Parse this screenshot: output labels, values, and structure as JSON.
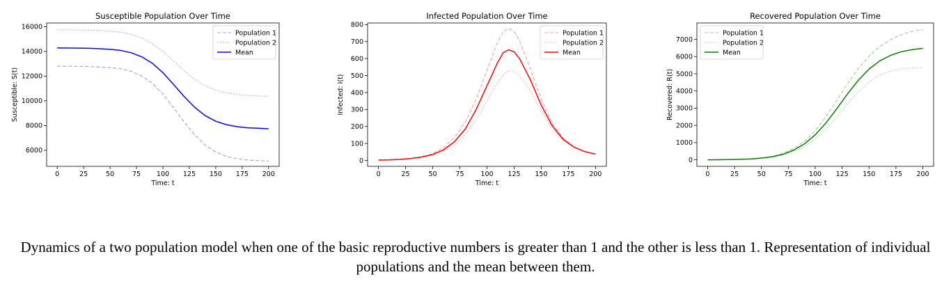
{
  "figure": {
    "caption": "Dynamics of a two population model when one of the basic reproductive numbers is greater than 1 and the other is less than 1. Representation of individual populations and the mean between them."
  },
  "chart_data": [
    {
      "type": "line",
      "title": "Susceptible Population Over Time",
      "xlabel": "Time: t",
      "ylabel": "Susceptible: S(t)",
      "xlim": [
        -10,
        210
      ],
      "ylim": [
        4700,
        16300
      ],
      "xticks": [
        0,
        25,
        50,
        75,
        100,
        125,
        150,
        175,
        200
      ],
      "yticks": [
        6000,
        8000,
        10000,
        12000,
        14000,
        16000
      ],
      "grid": false,
      "legend_position": "top-right",
      "x": [
        0,
        10,
        20,
        30,
        40,
        50,
        60,
        70,
        80,
        90,
        100,
        110,
        120,
        130,
        140,
        150,
        160,
        170,
        180,
        190,
        200
      ],
      "series": [
        {
          "name": "Population 1",
          "color": "#9999ff",
          "dash": "dashed",
          "values": [
            12800,
            12800,
            12790,
            12770,
            12740,
            12690,
            12590,
            12380,
            12010,
            11420,
            10550,
            9450,
            8300,
            7250,
            6420,
            5860,
            5500,
            5320,
            5210,
            5160,
            5110
          ]
        },
        {
          "name": "Population 2",
          "color": "#9999ff",
          "dash": "dotted",
          "values": [
            15750,
            15750,
            15740,
            15720,
            15690,
            15640,
            15550,
            15380,
            15080,
            14620,
            14000,
            13230,
            12430,
            11730,
            11200,
            10860,
            10640,
            10510,
            10440,
            10400,
            10360
          ]
        },
        {
          "name": "Mean",
          "color": "#0000ff",
          "dash": "solid",
          "values": [
            14280,
            14275,
            14265,
            14250,
            14220,
            14170,
            14080,
            13890,
            13560,
            13040,
            12280,
            11330,
            10360,
            9480,
            8800,
            8350,
            8070,
            7910,
            7820,
            7780,
            7740
          ]
        }
      ]
    },
    {
      "type": "line",
      "title": "Infected Population Over Time",
      "xlabel": "Time: t",
      "ylabel": "Infected: I(t)",
      "xlim": [
        -10,
        210
      ],
      "ylim": [
        -35,
        810
      ],
      "xticks": [
        0,
        25,
        50,
        75,
        100,
        125,
        150,
        175,
        200
      ],
      "yticks": [
        0,
        100,
        200,
        300,
        400,
        500,
        600,
        700,
        800
      ],
      "grid": false,
      "legend_position": "top-right",
      "x": [
        0,
        10,
        20,
        30,
        40,
        50,
        60,
        70,
        80,
        90,
        100,
        110,
        115,
        120,
        125,
        130,
        140,
        150,
        160,
        170,
        180,
        190,
        200
      ],
      "series": [
        {
          "name": "Population 1",
          "color": "#ff9999",
          "dash": "dashed",
          "values": [
            2,
            4,
            7,
            12,
            22,
            40,
            75,
            135,
            225,
            360,
            530,
            700,
            760,
            778,
            760,
            705,
            540,
            360,
            220,
            130,
            80,
            52,
            38
          ]
        },
        {
          "name": "Population 2",
          "color": "#ff9999",
          "dash": "dotted",
          "values": [
            2,
            3,
            6,
            10,
            18,
            30,
            52,
            90,
            150,
            240,
            350,
            460,
            505,
            530,
            525,
            500,
            410,
            290,
            190,
            120,
            78,
            52,
            36
          ]
        },
        {
          "name": "Mean",
          "color": "#ff0000",
          "dash": "solid",
          "values": [
            2,
            3,
            6,
            11,
            20,
            35,
            62,
            110,
            185,
            300,
            440,
            580,
            635,
            652,
            640,
            600,
            475,
            325,
            205,
            125,
            79,
            52,
            37
          ]
        }
      ]
    },
    {
      "type": "line",
      "title": "Recovered Population Over Time",
      "xlabel": "Time: t",
      "ylabel": "Recovered: R(t)",
      "xlim": [
        -10,
        210
      ],
      "ylim": [
        -380,
        7950
      ],
      "xticks": [
        0,
        25,
        50,
        75,
        100,
        125,
        150,
        175,
        200
      ],
      "yticks": [
        0,
        1000,
        2000,
        3000,
        4000,
        5000,
        6000,
        7000
      ],
      "grid": false,
      "legend_position": "top-left",
      "x": [
        0,
        10,
        20,
        30,
        40,
        50,
        60,
        70,
        80,
        90,
        100,
        110,
        120,
        130,
        140,
        150,
        160,
        170,
        180,
        190,
        200
      ],
      "series": [
        {
          "name": "Population 1",
          "color": "#99cc99",
          "dash": "dashed",
          "values": [
            0,
            5,
            15,
            30,
            60,
            110,
            200,
            370,
            650,
            1080,
            1700,
            2500,
            3450,
            4420,
            5300,
            6020,
            6580,
            6980,
            7270,
            7460,
            7580
          ]
        },
        {
          "name": "Population 2",
          "color": "#99cc99",
          "dash": "dotted",
          "values": [
            0,
            4,
            10,
            22,
            45,
            85,
            150,
            270,
            470,
            770,
            1200,
            1780,
            2500,
            3250,
            3950,
            4520,
            4920,
            5150,
            5280,
            5340,
            5370
          ]
        },
        {
          "name": "Mean",
          "color": "#008000",
          "dash": "solid",
          "values": [
            0,
            5,
            12,
            26,
            52,
            98,
            175,
            320,
            560,
            925,
            1450,
            2140,
            2970,
            3830,
            4620,
            5270,
            5750,
            6070,
            6280,
            6400,
            6480
          ]
        }
      ]
    }
  ]
}
